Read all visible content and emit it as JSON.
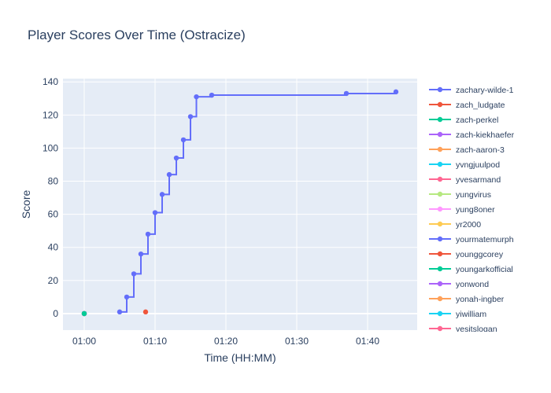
{
  "chart_data": {
    "type": "line",
    "title": "Player Scores Over Time (Ostracize)",
    "xlabel": "Time (HH:MM)",
    "ylabel": "Score",
    "x_unit": "HH:MM",
    "xlim": [
      "00:57",
      "01:47"
    ],
    "ylim": [
      -10,
      142
    ],
    "x_ticks": [
      "01:00",
      "01:10",
      "01:20",
      "01:30",
      "01:40"
    ],
    "y_ticks": [
      0,
      20,
      40,
      60,
      80,
      100,
      120,
      140
    ],
    "grid": true,
    "legend_placement": "right",
    "series": [
      {
        "name": "zachary-wilde-1",
        "color": "#636efa",
        "x": [
          "01:05",
          "01:06",
          "01:07",
          "01:08",
          "01:09",
          "01:10",
          "01:11",
          "01:12",
          "01:13",
          "01:14",
          "01:15",
          "01:15:50",
          "01:18",
          "01:37",
          "01:44"
        ],
        "y": [
          1,
          10,
          24,
          36,
          48,
          61,
          72,
          84,
          94,
          105,
          119,
          131,
          132,
          133,
          134
        ]
      },
      {
        "name": "zach_ludgate",
        "color": "#EF553B",
        "x": [
          "01:08:40"
        ],
        "y": [
          1
        ]
      },
      {
        "name": "zach-perkel",
        "color": "#00cc96",
        "x": [
          "01:00"
        ],
        "y": [
          0
        ]
      },
      {
        "name": "zach-kiekhaefer",
        "color": "#ab63fa",
        "x": [
          "01:00"
        ],
        "y": [
          0
        ]
      },
      {
        "name": "zach-aaron-3",
        "color": "#FFA15A",
        "x": [
          "01:00"
        ],
        "y": [
          0
        ]
      },
      {
        "name": "yvngjuulpod",
        "color": "#19d3f3",
        "x": [
          "01:00"
        ],
        "y": [
          0
        ]
      },
      {
        "name": "yvesarmand",
        "color": "#FF6692",
        "x": [
          "01:00"
        ],
        "y": [
          0
        ]
      },
      {
        "name": "yungvirus",
        "color": "#B6E880",
        "x": [
          "01:00"
        ],
        "y": [
          0
        ]
      },
      {
        "name": "yung8oner",
        "color": "#FF97FF",
        "x": [
          "01:00"
        ],
        "y": [
          0
        ]
      },
      {
        "name": "yr2000",
        "color": "#FECB52",
        "x": [
          "01:00"
        ],
        "y": [
          0
        ]
      },
      {
        "name": "yourmatemurph",
        "color": "#636efa",
        "x": [
          "01:00"
        ],
        "y": [
          0
        ]
      },
      {
        "name": "younggcorey",
        "color": "#EF553B",
        "x": [
          "01:00"
        ],
        "y": [
          0
        ]
      },
      {
        "name": "youngarkofficial",
        "color": "#00cc96",
        "x": [
          "01:00"
        ],
        "y": [
          0
        ]
      },
      {
        "name": "yonwond",
        "color": "#ab63fa",
        "x": [
          "01:00"
        ],
        "y": [
          0
        ]
      },
      {
        "name": "yonah-ingber",
        "color": "#FFA15A",
        "x": [
          "01:00"
        ],
        "y": [
          0
        ]
      },
      {
        "name": "yiwilliam",
        "color": "#19d3f3",
        "x": [
          "01:00"
        ],
        "y": [
          0
        ]
      },
      {
        "name": "yesitslogan",
        "color": "#FF6692",
        "x": [
          "01:00"
        ],
        "y": [
          0
        ]
      }
    ]
  }
}
